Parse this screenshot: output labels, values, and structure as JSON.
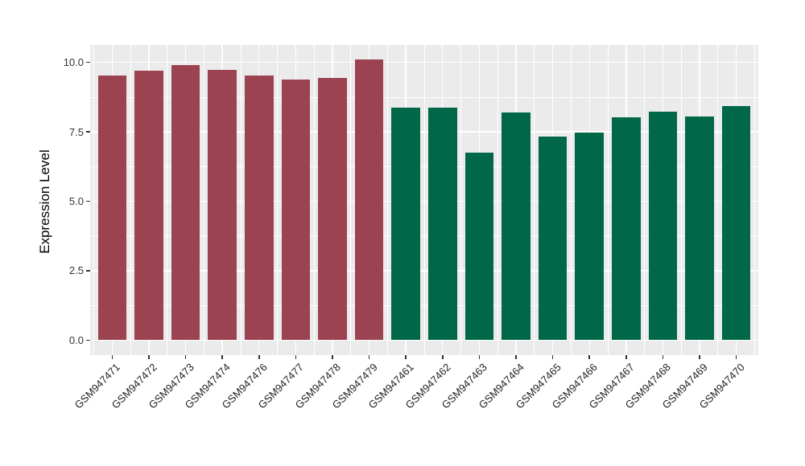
{
  "chart_data": {
    "type": "bar",
    "title": "",
    "xlabel": "",
    "ylabel": "Expression Level",
    "legend_position": "none",
    "grid": true,
    "panel_background": "#EBEBEB",
    "grid_color": "#FFFFFF",
    "axis_text_color": "#333333",
    "x_label_angle": 45,
    "ylim": [
      0,
      10.63
    ],
    "yticks": [
      0,
      2.5,
      5,
      7.5,
      10
    ],
    "ytick_labels": [
      "0.0",
      "2.5",
      "5.0",
      "7.5",
      "10.0"
    ],
    "yticks_minor": [
      1.25,
      3.75,
      6.25,
      8.75
    ],
    "categories": [
      "GSM947471",
      "GSM947472",
      "GSM947473",
      "GSM947474",
      "GSM947476",
      "GSM947477",
      "GSM947478",
      "GSM947479",
      "GSM947461",
      "GSM947462",
      "GSM947463",
      "GSM947464",
      "GSM947465",
      "GSM947466",
      "GSM947467",
      "GSM947468",
      "GSM947469",
      "GSM947470"
    ],
    "series": [
      {
        "name": "Expression Level",
        "values": [
          9.52,
          9.7,
          9.9,
          9.73,
          9.52,
          9.39,
          9.43,
          10.1,
          8.37,
          8.37,
          6.76,
          8.2,
          7.33,
          7.48,
          8.02,
          8.22,
          8.06,
          8.44
        ]
      }
    ],
    "bar_groups": [
      "group1",
      "group1",
      "group1",
      "group1",
      "group1",
      "group1",
      "group1",
      "group1",
      "group2",
      "group2",
      "group2",
      "group2",
      "group2",
      "group2",
      "group2",
      "group2",
      "group2",
      "group2"
    ],
    "group_colors": {
      "group1": "#9B4351",
      "group2": "#006849"
    }
  }
}
